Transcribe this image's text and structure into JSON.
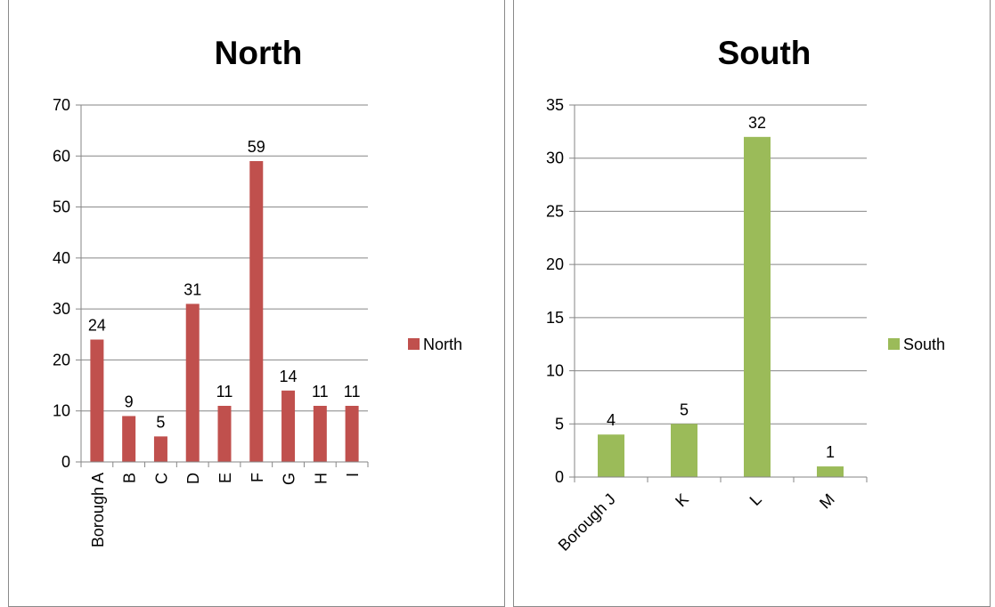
{
  "chart_data": [
    {
      "type": "bar",
      "title": "North",
      "categories": [
        "Borough A",
        "B",
        "C",
        "D",
        "E",
        "F",
        "G",
        "H",
        "I"
      ],
      "series": [
        {
          "name": "North",
          "values": [
            24,
            9,
            5,
            31,
            11,
            59,
            14,
            11,
            11
          ],
          "color": "#c0504d"
        }
      ],
      "ylim": [
        0,
        70
      ],
      "yticks": [
        0,
        10,
        20,
        30,
        40,
        50,
        60,
        70
      ],
      "grid": true,
      "legend": "right",
      "xtick_rotation": "vertical"
    },
    {
      "type": "bar",
      "title": "South",
      "categories": [
        "Borough J",
        "K",
        "L",
        "M"
      ],
      "series": [
        {
          "name": "South",
          "values": [
            4,
            5,
            32,
            1
          ],
          "color": "#9bbb59"
        }
      ],
      "ylim": [
        0,
        35
      ],
      "yticks": [
        0,
        5,
        10,
        15,
        20,
        25,
        30,
        35
      ],
      "grid": true,
      "legend": "right",
      "xtick_rotation": "diagonal"
    }
  ]
}
